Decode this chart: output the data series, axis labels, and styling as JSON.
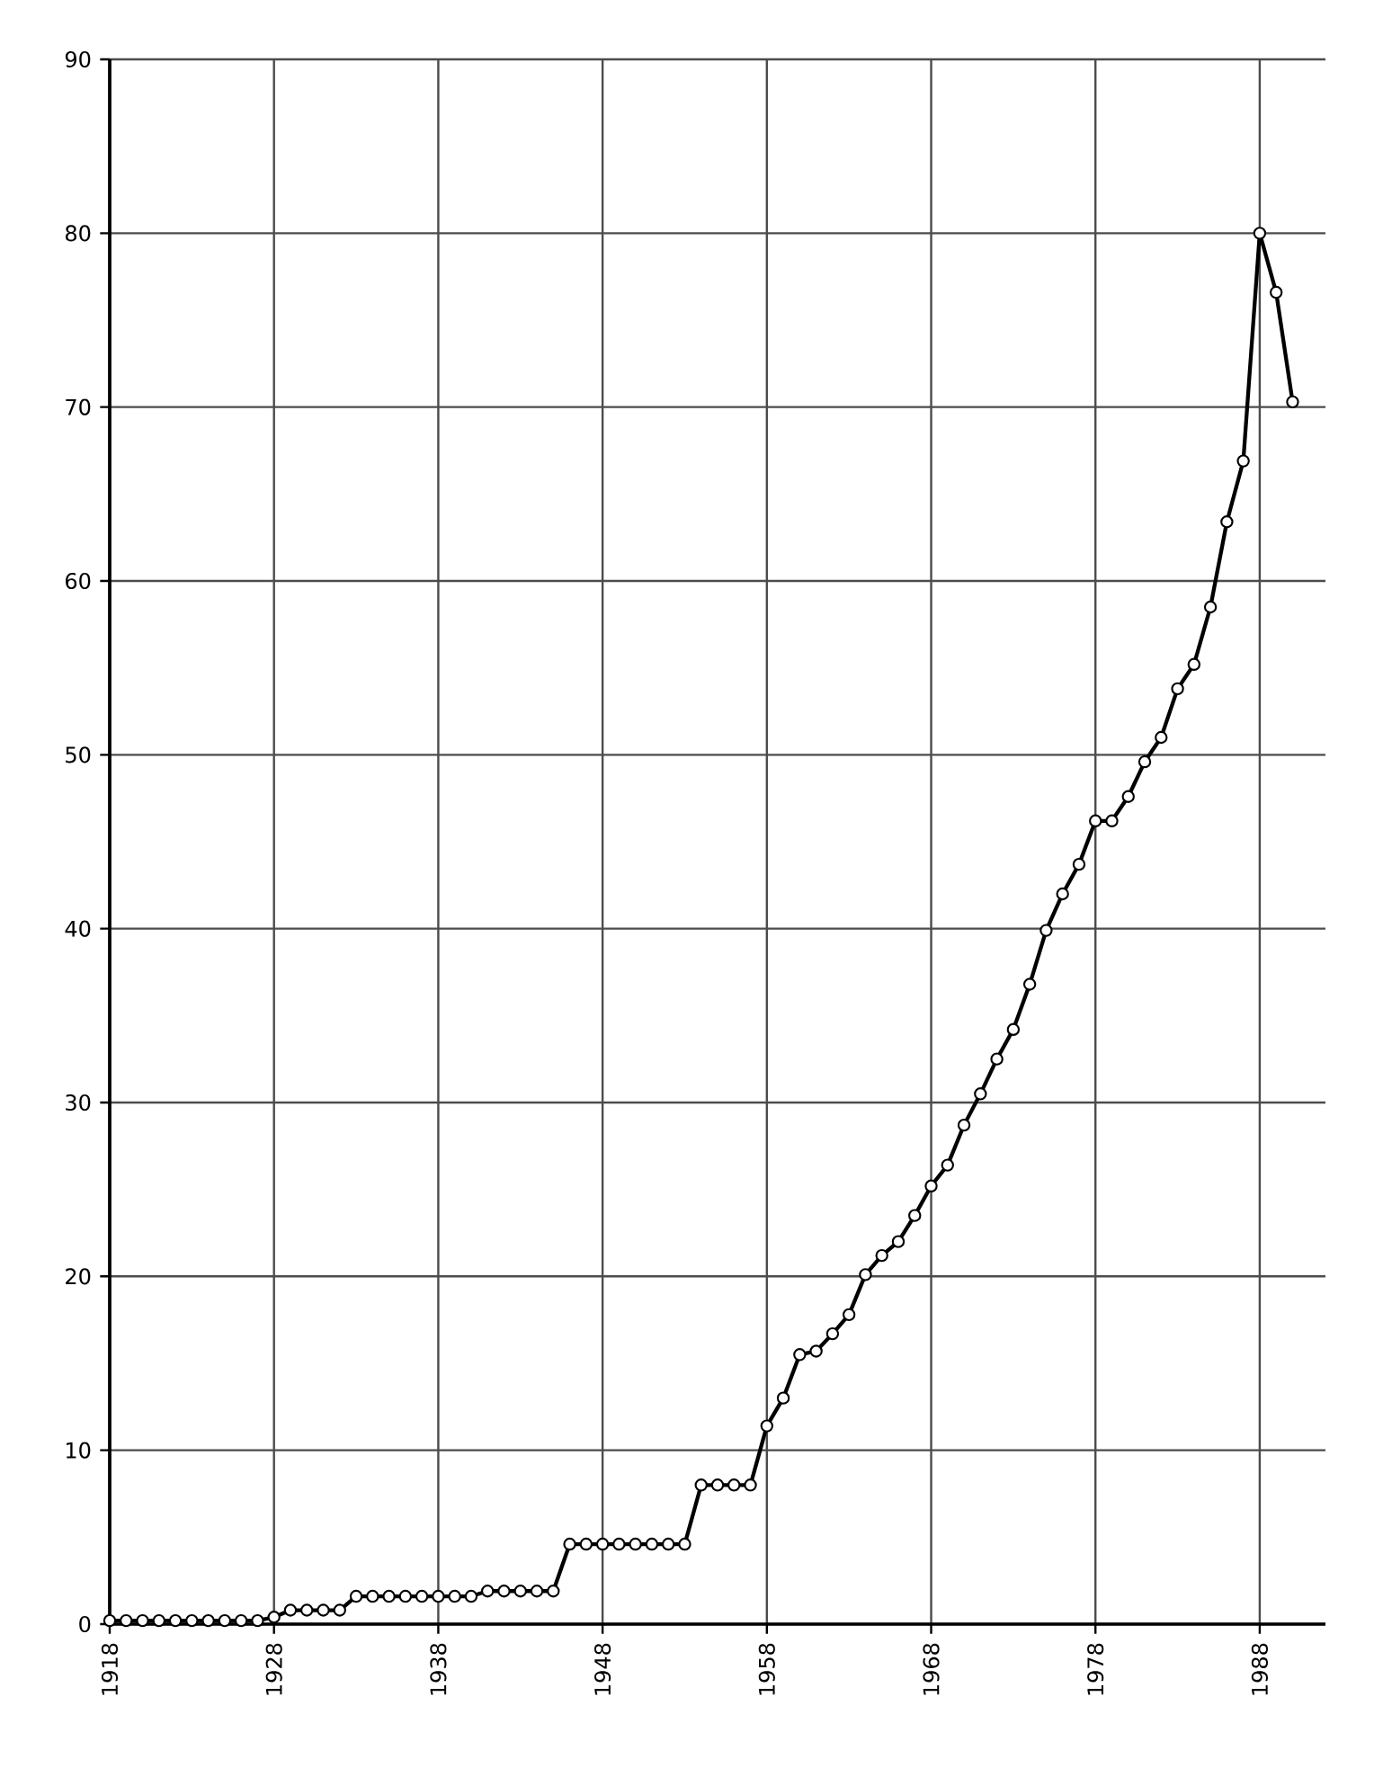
{
  "chart_data": {
    "type": "line",
    "x": [
      1918,
      1919,
      1920,
      1921,
      1922,
      1923,
      1924,
      1925,
      1926,
      1927,
      1928,
      1929,
      1930,
      1931,
      1932,
      1933,
      1934,
      1935,
      1936,
      1937,
      1938,
      1939,
      1940,
      1941,
      1942,
      1943,
      1944,
      1945,
      1946,
      1947,
      1948,
      1949,
      1950,
      1951,
      1952,
      1953,
      1954,
      1955,
      1956,
      1957,
      1958,
      1959,
      1960,
      1961,
      1962,
      1963,
      1964,
      1965,
      1966,
      1967,
      1968,
      1969,
      1970,
      1971,
      1972,
      1973,
      1974,
      1975,
      1976,
      1977,
      1978,
      1979,
      1980,
      1981,
      1982,
      1983,
      1984,
      1985,
      1986,
      1987,
      1988,
      1989,
      1990
    ],
    "series": [
      {
        "color": "#000000",
        "values": [
          0.2,
          0.2,
          0.2,
          0.2,
          0.2,
          0.2,
          0.2,
          0.2,
          0.2,
          0.2,
          0.4,
          0.8,
          0.8,
          0.8,
          0.8,
          1.6,
          1.6,
          1.6,
          1.6,
          1.6,
          1.6,
          1.6,
          1.6,
          1.9,
          1.9,
          1.9,
          1.9,
          1.9,
          4.6,
          4.6,
          4.6,
          4.6,
          4.6,
          4.6,
          4.6,
          4.6,
          8.0,
          8.0,
          8.0,
          8.0,
          11.4,
          13.0,
          15.5,
          15.7,
          16.7,
          17.8,
          20.1,
          21.2,
          22.0,
          23.5,
          25.2,
          26.4,
          28.7,
          30.5,
          32.5,
          34.2,
          36.8,
          39.9,
          42.0,
          43.7,
          46.2,
          46.2,
          47.6,
          49.6,
          51.0,
          53.8,
          55.2,
          58.5,
          63.4,
          66.9,
          80.0,
          76.6,
          70.3
        ]
      }
    ],
    "xlim": [
      1918,
      1992
    ],
    "xticks": [
      1918,
      1928,
      1938,
      1948,
      1958,
      1968,
      1978,
      1988
    ],
    "ylim": [
      0,
      90
    ],
    "yticks": [
      0,
      10,
      20,
      30,
      40,
      50,
      60,
      70,
      80,
      90
    ],
    "grid": true,
    "marker": "circle",
    "line_style": "solid"
  }
}
